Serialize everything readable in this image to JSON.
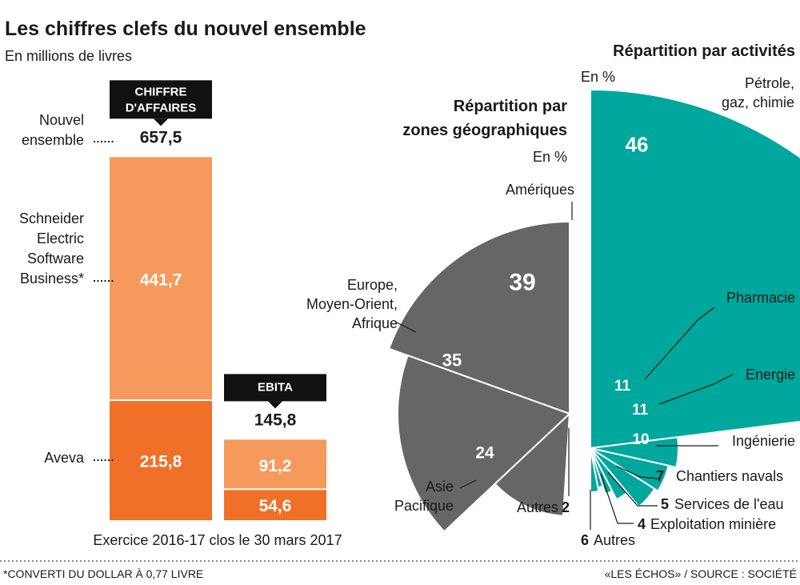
{
  "title": "Les chiffres clefs du nouvel ensemble",
  "subtitle": "En millions de livres",
  "footer": {
    "note": "*CONVERTI DU DOLLAR À 0,77 LIVRE",
    "source": "«LES ÉCHOS» / SOURCE : SOCIÉTÉ"
  },
  "colors": {
    "light_orange": "#f59a5c",
    "dark_orange": "#f07027",
    "gray": "#666666",
    "teal": "#00a79c",
    "badge": "#111111"
  },
  "chart_data": [
    {
      "type": "bar",
      "title": "Les chiffres clefs du nouvel ensemble",
      "unit": "En millions de livres",
      "xlabel": "Exercice 2016-17 clos le 30 mars 2017",
      "categories": [
        "CHIFFRE D'AFFAIRES",
        "EBITA"
      ],
      "badge_lines": [
        [
          "CHIFFRE",
          "D'AFFAIRES"
        ],
        [
          "EBITA"
        ]
      ],
      "series": [
        {
          "name": "Aveva",
          "label": "Aveva",
          "values": [
            215.8,
            54.6
          ],
          "display": [
            "215,8",
            "54,6"
          ]
        },
        {
          "name": "Schneider Electric Software Business*",
          "label_lines": [
            "Schneider",
            "Electric",
            "Software",
            "Business*"
          ],
          "values": [
            441.7,
            91.2
          ],
          "display": [
            "441,7",
            "91,2"
          ]
        }
      ],
      "totals": {
        "name": "Nouvel ensemble",
        "label_lines": [
          "Nouvel",
          "ensemble"
        ],
        "values": [
          657.5,
          145.8
        ],
        "display": [
          "657,5",
          "145,8"
        ]
      }
    },
    {
      "type": "pie",
      "title": "Répartition par zones géographiques",
      "title_lines": [
        "Répartition par",
        "zones géographiques"
      ],
      "unit": "En %",
      "slices": [
        {
          "label": "Amériques",
          "value": 39
        },
        {
          "label": "Europe, Moyen-Orient, Afrique",
          "label_lines": [
            "Europe,",
            "Moyen-Orient,",
            "Afrique"
          ],
          "value": 35
        },
        {
          "label": "Asie Pacifique",
          "label_lines": [
            "Asie",
            "Pacifique"
          ],
          "value": 24
        },
        {
          "label": "Autres",
          "value": 2
        }
      ]
    },
    {
      "type": "pie",
      "title": "Répartition par activités",
      "unit": "En %",
      "slices": [
        {
          "label": "Pétrole, gaz, chimie",
          "label_lines": [
            "Pétrole,",
            "gaz, chimie"
          ],
          "value": 46
        },
        {
          "label": "Pharmacie",
          "value": 11
        },
        {
          "label": "Energie",
          "value": 11
        },
        {
          "label": "Ingénierie",
          "value": 10
        },
        {
          "label": "Chantiers navals",
          "value": 7
        },
        {
          "label": "Services de l'eau",
          "value": 5
        },
        {
          "label": "Exploitation minière",
          "value": 4
        },
        {
          "label": "Autres",
          "value": 6
        }
      ]
    }
  ]
}
